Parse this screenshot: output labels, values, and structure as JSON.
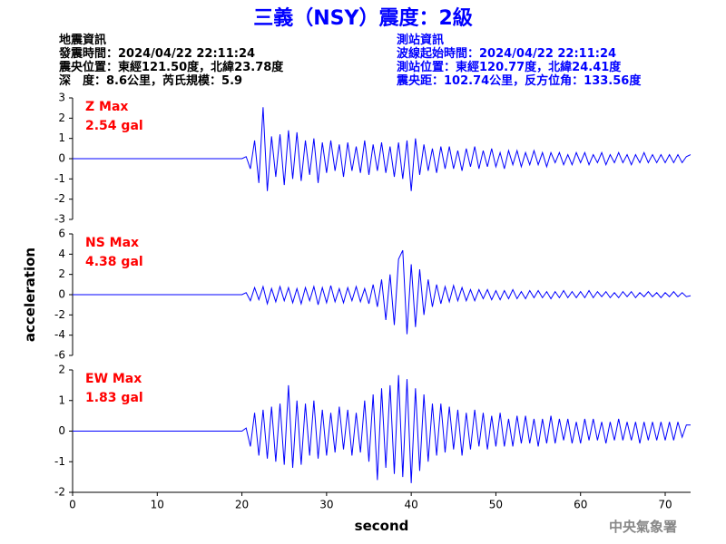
{
  "header": {
    "title": "三義（NSY）震度：2級",
    "left": [
      "地震資訊",
      "發震時間：2024/04/22 22:11:24",
      "震央位置：東經121.50度，北緯23.78度",
      "深　度：8.6公里，芮氏規模：5.9"
    ],
    "right": [
      "測站資訊",
      "波線起始時間：2024/04/22 22:11:24",
      "測站位置：東經120.77度，北緯24.41度",
      "震央距：102.74公里，反方位角：133.56度"
    ]
  },
  "footer": "中央氣象署",
  "chart_data": [
    {
      "type": "line",
      "annotations": [
        "Z Max",
        "2.54 gal"
      ],
      "color": "#0000ff",
      "xlim": [
        0,
        73
      ],
      "ylim": [
        -3,
        3
      ],
      "yticks": [
        -3,
        -2,
        -1,
        0,
        1,
        2,
        3
      ],
      "x": [
        0,
        20,
        20.5,
        21,
        21.5,
        22,
        22.5,
        23,
        23.5,
        24,
        24.5,
        25,
        25.5,
        26,
        26.5,
        27,
        27.5,
        28,
        28.5,
        29,
        29.5,
        30,
        30.5,
        31,
        31.5,
        32,
        32.5,
        33,
        33.5,
        34,
        34.5,
        35,
        35.5,
        36,
        36.5,
        37,
        37.5,
        38,
        38.5,
        39,
        39.5,
        40,
        40.5,
        41,
        41.5,
        42,
        42.5,
        43,
        43.5,
        44,
        44.5,
        45,
        45.5,
        46,
        46.5,
        47,
        47.5,
        48,
        48.5,
        49,
        49.5,
        50,
        50.5,
        51,
        51.5,
        52,
        52.5,
        53,
        53.5,
        54,
        54.5,
        55,
        55.5,
        56,
        56.5,
        57,
        57.5,
        58,
        58.5,
        59,
        59.5,
        60,
        60.5,
        61,
        61.5,
        62,
        62.5,
        63,
        63.5,
        64,
        64.5,
        65,
        65.5,
        66,
        66.5,
        67,
        67.5,
        68,
        68.5,
        69,
        69.5,
        70,
        70.5,
        71,
        71.5,
        72,
        72.5,
        73
      ],
      "values": [
        0,
        0,
        0.1,
        -0.5,
        0.9,
        -1.2,
        2.54,
        -1.6,
        1.1,
        -0.9,
        1.2,
        -1.3,
        1.4,
        -1.0,
        1.3,
        -1.1,
        0.9,
        -0.8,
        1.0,
        -1.2,
        0.8,
        -0.7,
        0.9,
        -0.6,
        0.7,
        -0.9,
        0.8,
        -0.6,
        0.6,
        -0.7,
        0.9,
        -0.8,
        0.7,
        -0.6,
        0.8,
        -0.7,
        0.6,
        -0.9,
        0.8,
        -1.0,
        0.9,
        -1.6,
        1.0,
        -0.8,
        0.7,
        -0.6,
        0.5,
        -0.7,
        0.6,
        -0.5,
        0.6,
        -0.5,
        0.4,
        -0.6,
        0.5,
        -0.4,
        0.6,
        -0.5,
        0.4,
        -0.4,
        0.5,
        -0.4,
        0.3,
        -0.5,
        0.4,
        -0.3,
        0.4,
        -0.4,
        0.3,
        -0.3,
        0.4,
        -0.3,
        0.3,
        -0.4,
        0.3,
        -0.2,
        0.3,
        -0.3,
        0.2,
        -0.3,
        0.3,
        -0.2,
        0.3,
        -0.3,
        0.2,
        -0.2,
        0.3,
        -0.3,
        0.2,
        -0.2,
        0.3,
        -0.2,
        0.2,
        -0.3,
        0.2,
        -0.2,
        0.3,
        -0.2,
        0.2,
        -0.2,
        0.2,
        -0.2,
        0.2,
        -0.2,
        0.2,
        -0.2,
        0.1,
        0.2
      ]
    },
    {
      "type": "line",
      "annotations": [
        "NS Max",
        "4.38 gal"
      ],
      "ylabel": "acceleration",
      "color": "#0000ff",
      "xlim": [
        0,
        73
      ],
      "ylim": [
        -6,
        6
      ],
      "yticks": [
        -6,
        -4,
        -2,
        0,
        2,
        4,
        6
      ],
      "x": [
        0,
        20,
        20.5,
        21,
        21.5,
        22,
        22.5,
        23,
        23.5,
        24,
        24.5,
        25,
        25.5,
        26,
        26.5,
        27,
        27.5,
        28,
        28.5,
        29,
        29.5,
        30,
        30.5,
        31,
        31.5,
        32,
        32.5,
        33,
        33.5,
        34,
        34.5,
        35,
        35.5,
        36,
        36.5,
        37,
        37.5,
        38,
        38.5,
        39,
        39.5,
        40,
        40.5,
        41,
        41.5,
        42,
        42.5,
        43,
        43.5,
        44,
        44.5,
        45,
        45.5,
        46,
        46.5,
        47,
        47.5,
        48,
        48.5,
        49,
        49.5,
        50,
        50.5,
        51,
        51.5,
        52,
        52.5,
        53,
        53.5,
        54,
        54.5,
        55,
        55.5,
        56,
        56.5,
        57,
        57.5,
        58,
        58.5,
        59,
        59.5,
        60,
        60.5,
        61,
        61.5,
        62,
        62.5,
        63,
        63.5,
        64,
        64.5,
        65,
        65.5,
        66,
        66.5,
        67,
        67.5,
        68,
        68.5,
        69,
        69.5,
        70,
        70.5,
        71,
        71.5,
        72,
        72.5,
        73
      ],
      "values": [
        0,
        0,
        0.2,
        -0.6,
        0.7,
        -0.5,
        0.8,
        -0.9,
        0.6,
        -0.7,
        0.8,
        -0.6,
        0.7,
        -0.8,
        0.6,
        -0.9,
        0.7,
        -0.6,
        0.8,
        -1.0,
        0.7,
        -0.8,
        0.9,
        -0.7,
        0.6,
        -0.8,
        0.7,
        -0.6,
        0.8,
        -0.7,
        0.6,
        -0.9,
        1.0,
        -1.2,
        1.5,
        -2.5,
        2.0,
        -3.0,
        3.5,
        4.38,
        -3.9,
        3.0,
        -3.2,
        2.5,
        -2.0,
        1.5,
        -1.2,
        1.0,
        -0.9,
        0.8,
        -0.7,
        0.9,
        -0.6,
        0.7,
        -0.6,
        0.5,
        -0.6,
        0.5,
        -0.4,
        0.5,
        -0.5,
        0.4,
        -0.5,
        0.4,
        -0.4,
        0.5,
        -0.4,
        0.3,
        -0.4,
        0.4,
        -0.3,
        0.4,
        -0.3,
        0.3,
        -0.4,
        0.3,
        -0.3,
        0.4,
        -0.3,
        0.3,
        -0.3,
        0.3,
        -0.3,
        0.4,
        -0.3,
        0.3,
        -0.2,
        0.3,
        -0.3,
        0.2,
        -0.3,
        0.3,
        -0.2,
        0.3,
        -0.3,
        0.2,
        -0.2,
        0.3,
        -0.2,
        0.2,
        -0.3,
        0.2,
        -0.2,
        0.3,
        -0.2,
        0.2,
        -0.2,
        -0.1
      ]
    },
    {
      "type": "line",
      "annotations": [
        "EW Max",
        "1.83 gal"
      ],
      "xlabel": "second",
      "color": "#0000ff",
      "xlim": [
        0,
        73
      ],
      "ylim": [
        -2,
        2
      ],
      "yticks": [
        -2,
        -1,
        0,
        1,
        2
      ],
      "xticks": [
        0,
        10,
        20,
        30,
        40,
        50,
        60,
        70
      ],
      "x": [
        0,
        20,
        20.5,
        21,
        21.5,
        22,
        22.5,
        23,
        23.5,
        24,
        24.5,
        25,
        25.5,
        26,
        26.5,
        27,
        27.5,
        28,
        28.5,
        29,
        29.5,
        30,
        30.5,
        31,
        31.5,
        32,
        32.5,
        33,
        33.5,
        34,
        34.5,
        35,
        35.5,
        36,
        36.5,
        37,
        37.5,
        38,
        38.5,
        39,
        39.5,
        40,
        40.5,
        41,
        41.5,
        42,
        42.5,
        43,
        43.5,
        44,
        44.5,
        45,
        45.5,
        46,
        46.5,
        47,
        47.5,
        48,
        48.5,
        49,
        49.5,
        50,
        50.5,
        51,
        51.5,
        52,
        52.5,
        53,
        53.5,
        54,
        54.5,
        55,
        55.5,
        56,
        56.5,
        57,
        57.5,
        58,
        58.5,
        59,
        59.5,
        60,
        60.5,
        61,
        61.5,
        62,
        62.5,
        63,
        63.5,
        64,
        64.5,
        65,
        65.5,
        66,
        66.5,
        67,
        67.5,
        68,
        68.5,
        69,
        69.5,
        70,
        70.5,
        71,
        71.5,
        72,
        72.5,
        73
      ],
      "values": [
        0,
        0,
        0.1,
        -0.5,
        0.6,
        -0.8,
        0.7,
        -0.9,
        0.8,
        -1.0,
        0.9,
        -1.1,
        1.5,
        -1.2,
        1.0,
        -1.1,
        0.9,
        -0.8,
        1.0,
        -0.9,
        0.7,
        -0.8,
        0.6,
        -0.7,
        0.8,
        -0.6,
        0.7,
        -0.8,
        0.6,
        -0.7,
        1.0,
        -1.0,
        1.2,
        -1.6,
        1.4,
        -1.2,
        1.5,
        -1.4,
        1.83,
        -1.5,
        1.7,
        -1.7,
        1.4,
        -1.3,
        1.2,
        -1.0,
        0.9,
        -0.8,
        0.9,
        -0.7,
        0.8,
        -0.6,
        0.7,
        -0.8,
        0.6,
        -0.6,
        0.7,
        -0.5,
        0.6,
        -0.6,
        0.5,
        -0.5,
        0.6,
        -0.5,
        0.4,
        -0.5,
        0.5,
        -0.4,
        0.5,
        -0.4,
        0.4,
        -0.5,
        0.4,
        -0.4,
        0.5,
        -0.4,
        0.4,
        -0.3,
        0.4,
        -0.4,
        0.3,
        -0.4,
        0.4,
        -0.3,
        0.4,
        -0.3,
        0.3,
        -0.4,
        0.3,
        -0.3,
        0.4,
        -0.3,
        0.3,
        -0.3,
        0.3,
        -0.4,
        0.3,
        -0.3,
        0.3,
        -0.3,
        0.3,
        -0.3,
        0.3,
        -0.3,
        0.3,
        -0.2,
        0.2,
        0.2
      ]
    }
  ]
}
